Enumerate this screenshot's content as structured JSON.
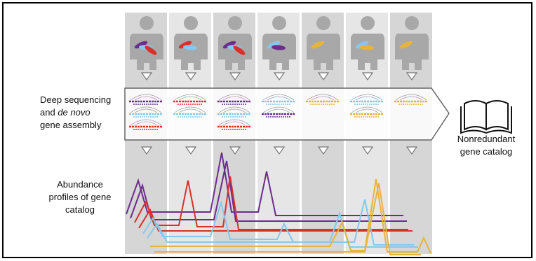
{
  "assembly_label": {
    "line1": "Deep sequencing",
    "line2_start": "and",
    "line2_italic": "de novo",
    "line3": "gene assembly"
  },
  "catalog_label": {
    "line1": "Nonredundant",
    "line2": "gene catalog"
  },
  "abundance_label": {
    "line1": "Abundance",
    "line2": "profiles of gene",
    "line3": "catalog"
  }
}
